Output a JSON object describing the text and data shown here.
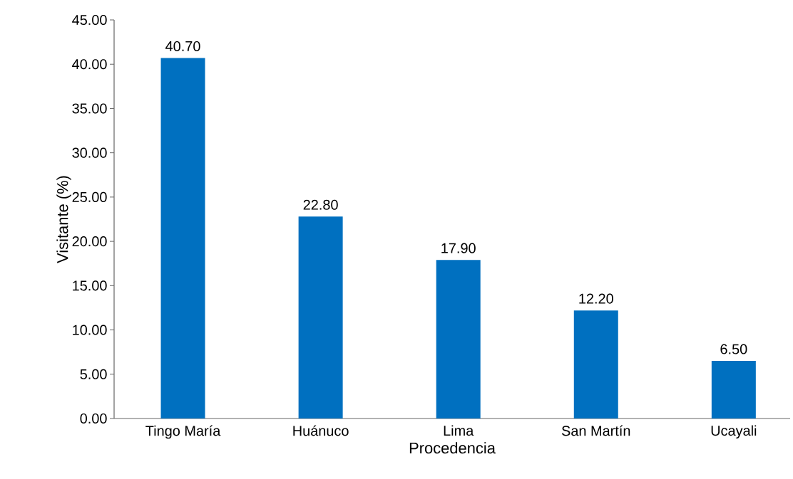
{
  "chart_data": {
    "type": "bar",
    "xlabel": "Procedencia",
    "ylabel": "Visitante (%)",
    "categories": [
      "Tingo María",
      "Huánuco",
      "Lima",
      "San Martín",
      "Ucayali"
    ],
    "values": [
      40.7,
      22.8,
      17.9,
      12.2,
      6.5
    ],
    "value_labels": [
      "40.70",
      "22.80",
      "17.90",
      "12.20",
      "6.50"
    ],
    "color": "#0070c0",
    "ylim": [
      0,
      45
    ],
    "yticks": [
      {
        "value": 0,
        "label": "0.00"
      },
      {
        "value": 5,
        "label": "5.00"
      },
      {
        "value": 10,
        "label": "10.00"
      },
      {
        "value": 15,
        "label": "15.00"
      },
      {
        "value": 20,
        "label": "20.00"
      },
      {
        "value": 25,
        "label": "25.00"
      },
      {
        "value": 30,
        "label": "30.00"
      },
      {
        "value": 35,
        "label": "35.00"
      },
      {
        "value": 40,
        "label": "40.00"
      },
      {
        "value": 45,
        "label": "45.00"
      }
    ],
    "grid": false
  }
}
